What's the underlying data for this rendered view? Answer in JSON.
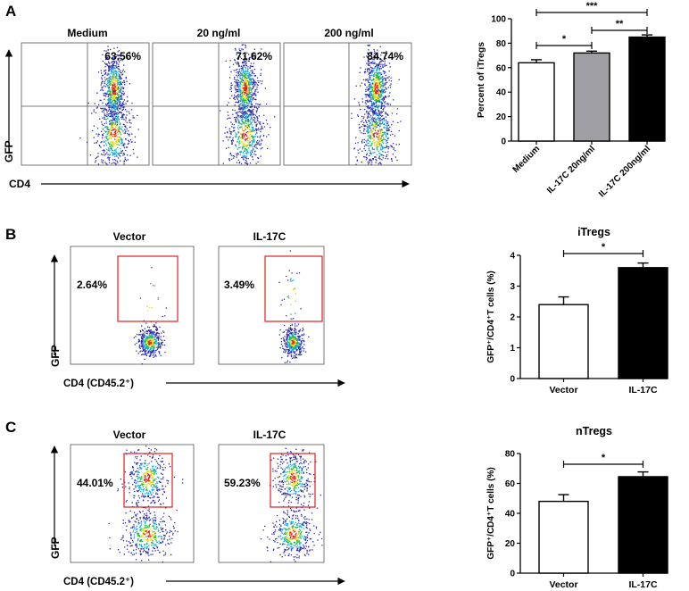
{
  "colors": {
    "ink": "#000000",
    "grey_bar": "#9e9ea3",
    "gate": "#e02020",
    "dot_blue": "#2a2aa8",
    "dot_cyan": "#18a8d8",
    "dot_green": "#2ab83a",
    "dot_yellow": "#e8d81a",
    "dot_red": "#e0281a"
  },
  "panels": [
    {
      "letter": "A"
    },
    {
      "letter": "B"
    },
    {
      "letter": "C"
    }
  ],
  "flow": {
    "A": {
      "ylabel": "GFP",
      "xlabel": "CD4",
      "plots": [
        {
          "condition": "Medium",
          "percent": "63.56%"
        },
        {
          "condition": "20 ng/ml",
          "percent": "71.62%"
        },
        {
          "condition": "200 ng/ml",
          "percent": "84.74%"
        }
      ]
    },
    "B": {
      "ylabel": "GFP",
      "xlabel": "CD4 (CD45.2⁺)",
      "plots": [
        {
          "condition": "Vector",
          "percent": "2.64%"
        },
        {
          "condition": "IL-17C",
          "percent": "3.49%"
        }
      ]
    },
    "C": {
      "ylabel": "GFP",
      "xlabel": "CD4 (CD45.2⁺)",
      "plots": [
        {
          "condition": "Vector",
          "percent": "44.01%"
        },
        {
          "condition": "IL-17C",
          "percent": "59.23%"
        }
      ]
    }
  },
  "chart_data": [
    {
      "id": "A",
      "type": "bar",
      "title": "",
      "xlabel": "",
      "ylabel": "Percent of iTregs",
      "categories": [
        "Medium",
        "IL-17C 20ng/ml",
        "IL-17C 200ng/ml"
      ],
      "values": [
        64,
        72,
        85
      ],
      "errors": [
        2.5,
        1.5,
        1.8
      ],
      "bar_colors": [
        "#ffffff",
        "#9e9ea3",
        "#000000"
      ],
      "ylim": [
        0,
        100
      ],
      "yticks": [
        "0",
        "20",
        "40",
        "60",
        "80",
        "100"
      ],
      "significance": [
        {
          "from": 0,
          "to": 1,
          "label": "*"
        },
        {
          "from": 1,
          "to": 2,
          "label": "**"
        },
        {
          "from": 0,
          "to": 2,
          "label": "***"
        }
      ]
    },
    {
      "id": "B",
      "type": "bar",
      "title": "iTregs",
      "xlabel": "",
      "ylabel": "GFP⁺/CD4⁺T cells (%)",
      "categories": [
        "Vector",
        "IL-17C"
      ],
      "values": [
        2.4,
        3.6
      ],
      "errors": [
        0.25,
        0.15
      ],
      "bar_colors": [
        "#ffffff",
        "#000000"
      ],
      "ylim": [
        0,
        4
      ],
      "yticks": [
        "0",
        "1",
        "2",
        "3",
        "4"
      ],
      "significance": [
        {
          "from": 0,
          "to": 1,
          "label": "*"
        }
      ]
    },
    {
      "id": "C",
      "type": "bar",
      "title": "nTregs",
      "xlabel": "",
      "ylabel": "GFP⁺/CD4⁺T cells (%)",
      "categories": [
        "Vector",
        "IL-17C"
      ],
      "values": [
        48,
        64.5
      ],
      "errors": [
        4.5,
        3.2
      ],
      "bar_colors": [
        "#ffffff",
        "#000000"
      ],
      "ylim": [
        0,
        80
      ],
      "yticks": [
        "0",
        "20",
        "40",
        "60",
        "80"
      ],
      "significance": [
        {
          "from": 0,
          "to": 1,
          "label": "*"
        }
      ]
    }
  ]
}
